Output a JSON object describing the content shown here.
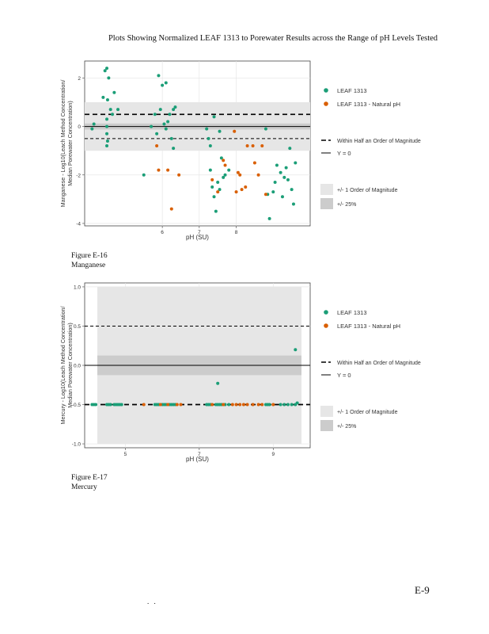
{
  "page": {
    "title": "Plots Showing Normalized LEAF 1313 to Porewater Results across the Range of pH Levels Tested",
    "page_number": "E-9",
    "footer_marks": ". ."
  },
  "legend": {
    "series": [
      "LEAF 1313",
      "LEAF 1313 - Natural pH"
    ],
    "lines": [
      "Within Half an Order of Magnitude",
      "Y = 0"
    ],
    "bands": [
      "+/- 1 Order of Magnitude",
      "+/- 25%"
    ]
  },
  "colors": {
    "leaf": "#1b9e77",
    "natural": "#d95f02",
    "panel": "#ebebeb",
    "band_outer": "#e6e6e6",
    "band_inner": "#cccccc"
  },
  "chart_data": [
    {
      "type": "scatter",
      "caption": [
        "Figure E-16",
        "Manganese"
      ],
      "xlabel": "pH (SU)",
      "ylabel": [
        "Manganese - Log10(Leach Method Concentration/",
        "Median Porewater Concentration)"
      ],
      "xlim": [
        3.9,
        10.0
      ],
      "ylim": [
        -4.1,
        2.7
      ],
      "xticks": [
        6,
        7,
        8
      ],
      "xtick_labels": [
        "6",
        "7",
        "8"
      ],
      "yticks": [
        -4,
        -2,
        0,
        2
      ],
      "ytick_labels": [
        "-4",
        "-2",
        "0",
        "2"
      ],
      "band_outer": [
        -1,
        1
      ],
      "band_inner": [
        -0.125,
        0.125
      ],
      "dashed_lines": [
        0.5,
        -0.5
      ],
      "series": [
        {
          "name": "LEAF 1313",
          "points": [
            [
              4.1,
              -0.1
            ],
            [
              4.15,
              0.1
            ],
            [
              4.4,
              1.2
            ],
            [
              4.45,
              2.3
            ],
            [
              4.5,
              2.4
            ],
            [
              4.52,
              1.1
            ],
            [
              4.55,
              2.0
            ],
            [
              4.5,
              0.3
            ],
            [
              4.5,
              0.0
            ],
            [
              4.5,
              -0.3
            ],
            [
              4.52,
              -0.6
            ],
            [
              4.5,
              -0.8
            ],
            [
              4.6,
              0.7
            ],
            [
              4.65,
              0.5
            ],
            [
              4.7,
              1.4
            ],
            [
              4.8,
              0.7
            ],
            [
              5.5,
              -2.0
            ],
            [
              5.7,
              0.0
            ],
            [
              5.8,
              0.5
            ],
            [
              5.85,
              -0.3
            ],
            [
              5.9,
              2.1
            ],
            [
              5.95,
              0.7
            ],
            [
              6.0,
              1.7
            ],
            [
              6.05,
              0.1
            ],
            [
              6.1,
              1.8
            ],
            [
              6.15,
              0.2
            ],
            [
              6.1,
              -0.1
            ],
            [
              6.2,
              0.5
            ],
            [
              6.25,
              -0.5
            ],
            [
              6.3,
              0.7
            ],
            [
              6.3,
              -0.9
            ],
            [
              6.35,
              0.8
            ],
            [
              7.2,
              -0.1
            ],
            [
              7.25,
              -0.5
            ],
            [
              7.3,
              -0.8
            ],
            [
              7.4,
              0.4
            ],
            [
              7.3,
              -1.8
            ],
            [
              7.35,
              -2.5
            ],
            [
              7.4,
              -2.9
            ],
            [
              7.45,
              -3.5
            ],
            [
              7.5,
              -2.3
            ],
            [
              7.55,
              -0.2
            ],
            [
              7.6,
              -1.3
            ],
            [
              7.65,
              -2.1
            ],
            [
              7.55,
              -2.6
            ],
            [
              7.7,
              -2.0
            ],
            [
              7.8,
              -1.8
            ],
            [
              8.8,
              -0.1
            ],
            [
              8.85,
              -2.8
            ],
            [
              8.9,
              -3.8
            ],
            [
              9.0,
              -2.7
            ],
            [
              9.05,
              -2.3
            ],
            [
              9.1,
              -1.6
            ],
            [
              9.2,
              -1.9
            ],
            [
              9.25,
              -2.9
            ],
            [
              9.3,
              -2.1
            ],
            [
              9.35,
              -1.7
            ],
            [
              9.4,
              -2.2
            ],
            [
              9.5,
              -2.6
            ],
            [
              9.45,
              -0.9
            ],
            [
              9.55,
              -3.2
            ],
            [
              9.6,
              -1.5
            ]
          ]
        },
        {
          "name": "LEAF 1313 - Natural pH",
          "points": [
            [
              5.85,
              -0.8
            ],
            [
              5.9,
              -1.8
            ],
            [
              6.15,
              -1.8
            ],
            [
              6.25,
              -3.4
            ],
            [
              6.45,
              -2.0
            ],
            [
              7.35,
              -2.2
            ],
            [
              7.5,
              -2.7
            ],
            [
              7.65,
              -1.4
            ],
            [
              7.7,
              -1.6
            ],
            [
              7.95,
              -0.2
            ],
            [
              8.0,
              -2.7
            ],
            [
              8.05,
              -1.9
            ],
            [
              8.1,
              -2.0
            ],
            [
              8.15,
              -2.6
            ],
            [
              8.25,
              -2.5
            ],
            [
              8.3,
              -0.8
            ],
            [
              8.45,
              -0.8
            ],
            [
              8.5,
              -1.5
            ],
            [
              8.6,
              -2.0
            ],
            [
              8.7,
              -0.8
            ],
            [
              8.8,
              -2.8
            ]
          ]
        }
      ]
    },
    {
      "type": "scatter",
      "caption": [
        "Figure E-17",
        "Mercury"
      ],
      "xlabel": "pH (SU)",
      "ylabel": [
        "Mercury - Log10(Leach Method Concentration/",
        "Median Porewater Concentration)"
      ],
      "xlim": [
        3.9,
        10.0
      ],
      "ylim": [
        -1.05,
        1.05
      ],
      "xticks": [
        5,
        7,
        9
      ],
      "xtick_labels": [
        "5",
        "7",
        "9"
      ],
      "yticks": [
        -1.0,
        -0.5,
        0.0,
        0.5,
        1.0
      ],
      "ytick_labels": [
        "-1.0",
        "-0.5",
        "0.0",
        "0.5",
        "1.0"
      ],
      "band_outer": [
        -1,
        1
      ],
      "band_inner": [
        -0.125,
        0.125
      ],
      "dashed_lines": [
        0.5,
        -0.5
      ],
      "series": [
        {
          "name": "LEAF 1313",
          "points": [
            [
              4.1,
              -0.5
            ],
            [
              4.15,
              -0.5
            ],
            [
              4.2,
              -0.5
            ],
            [
              4.5,
              -0.5
            ],
            [
              4.55,
              -0.5
            ],
            [
              4.6,
              -0.5
            ],
            [
              4.7,
              -0.5
            ],
            [
              4.75,
              -0.5
            ],
            [
              4.8,
              -0.5
            ],
            [
              4.85,
              -0.5
            ],
            [
              4.9,
              -0.5
            ],
            [
              5.8,
              -0.5
            ],
            [
              5.85,
              -0.5
            ],
            [
              5.9,
              -0.5
            ],
            [
              6.0,
              -0.5
            ],
            [
              6.05,
              -0.5
            ],
            [
              6.1,
              -0.5
            ],
            [
              6.2,
              -0.5
            ],
            [
              6.25,
              -0.5
            ],
            [
              6.3,
              -0.5
            ],
            [
              6.35,
              -0.5
            ],
            [
              7.2,
              -0.5
            ],
            [
              7.25,
              -0.5
            ],
            [
              7.3,
              -0.5
            ],
            [
              7.45,
              -0.5
            ],
            [
              7.5,
              -0.5
            ],
            [
              7.55,
              -0.5
            ],
            [
              7.6,
              -0.5
            ],
            [
              7.7,
              -0.5
            ],
            [
              7.8,
              -0.5
            ],
            [
              7.5,
              -0.23
            ],
            [
              8.8,
              -0.5
            ],
            [
              8.85,
              -0.5
            ],
            [
              8.9,
              -0.5
            ],
            [
              9.2,
              -0.5
            ],
            [
              9.3,
              -0.5
            ],
            [
              9.4,
              -0.5
            ],
            [
              9.5,
              -0.5
            ],
            [
              9.6,
              -0.5
            ],
            [
              9.65,
              -0.48
            ],
            [
              9.6,
              0.2
            ]
          ]
        },
        {
          "name": "LEAF 1313 - Natural pH",
          "points": [
            [
              5.5,
              -0.5
            ],
            [
              5.95,
              -0.5
            ],
            [
              6.15,
              -0.5
            ],
            [
              6.4,
              -0.5
            ],
            [
              6.5,
              -0.5
            ],
            [
              7.35,
              -0.5
            ],
            [
              7.65,
              -0.5
            ],
            [
              7.9,
              -0.5
            ],
            [
              8.0,
              -0.5
            ],
            [
              8.1,
              -0.5
            ],
            [
              8.2,
              -0.5
            ],
            [
              8.3,
              -0.5
            ],
            [
              8.45,
              -0.5
            ],
            [
              8.6,
              -0.5
            ],
            [
              8.7,
              -0.5
            ],
            [
              9.0,
              -0.5
            ]
          ]
        }
      ]
    }
  ]
}
